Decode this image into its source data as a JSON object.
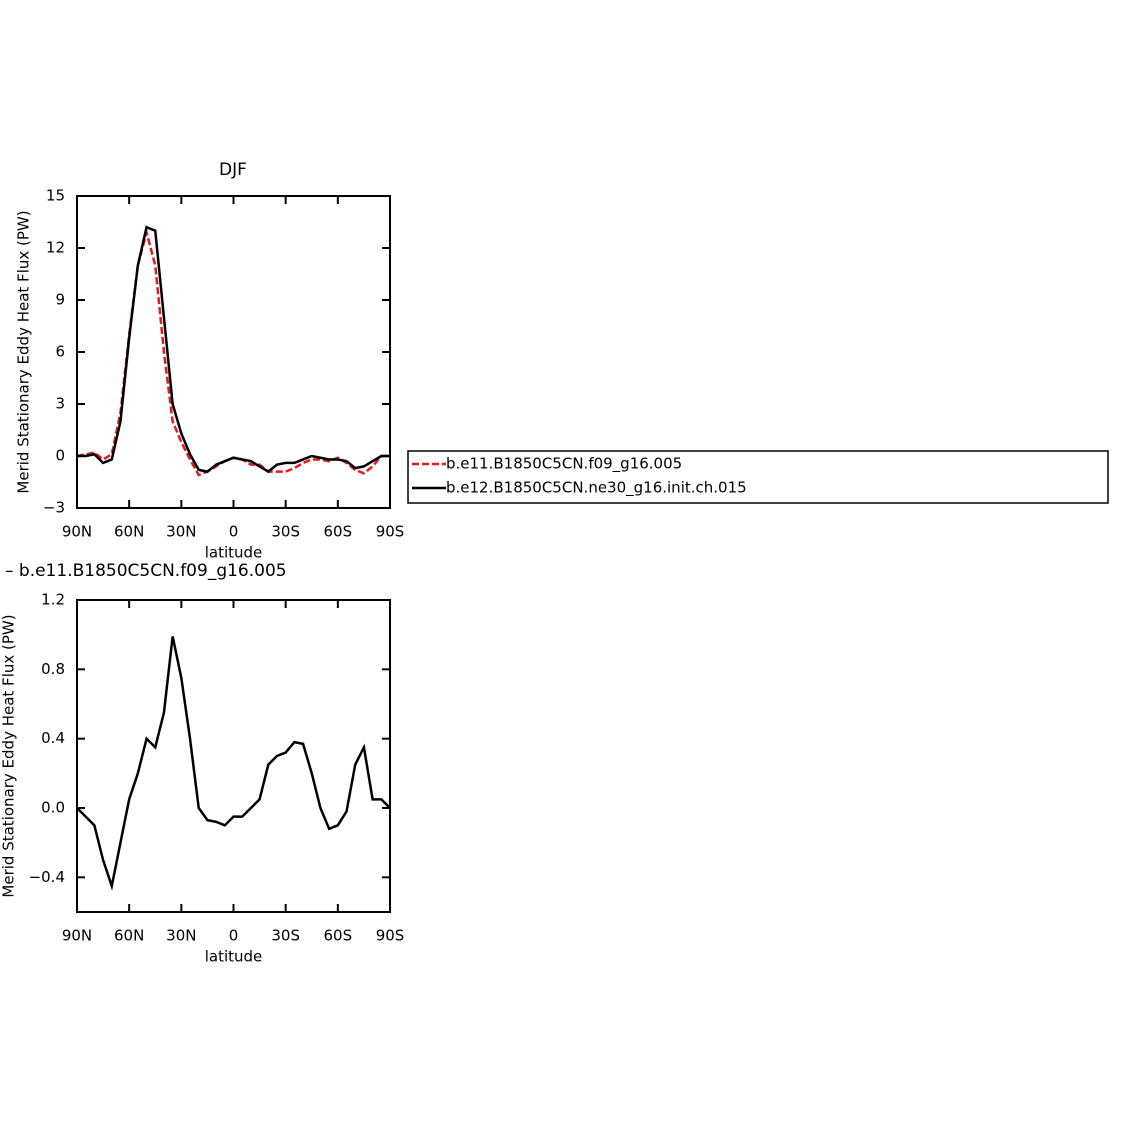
{
  "chart_data": [
    {
      "type": "line",
      "title": "DJF",
      "xlabel": "latitude",
      "ylabel": "Merid Stationary Eddy Heat Flux (PW)",
      "x": [
        90,
        85,
        80,
        75,
        70,
        65,
        60,
        55,
        50,
        45,
        40,
        35,
        30,
        25,
        20,
        15,
        10,
        5,
        0,
        -5,
        -10,
        -15,
        -20,
        -25,
        -30,
        -35,
        -40,
        -45,
        -50,
        -55,
        -60,
        -65,
        -70,
        -75,
        -80,
        -85,
        -90
      ],
      "series": [
        {
          "name": "b.e11.B1850C5CN.f09_g16.005",
          "color": "#e41a1c",
          "dash": true,
          "values": [
            0,
            0.1,
            0.2,
            -0.2,
            0.1,
            2.5,
            7,
            11,
            12.9,
            11,
            6,
            2,
            0.8,
            -0.2,
            -1.1,
            -0.9,
            -0.6,
            -0.3,
            -0.1,
            -0.2,
            -0.5,
            -0.5,
            -0.9,
            -0.9,
            -0.9,
            -0.7,
            -0.4,
            -0.2,
            -0.2,
            -0.3,
            -0.1,
            -0.4,
            -0.8,
            -1.0,
            -0.6,
            0,
            0
          ]
        },
        {
          "name": "b.e12.B1850C5CN.ne30_g16.init.ch.015",
          "color": "#000000",
          "dash": false,
          "values": [
            0,
            0,
            0.1,
            -0.4,
            -0.2,
            2,
            6.8,
            11,
            13.2,
            13,
            8,
            3,
            1.3,
            0.1,
            -0.8,
            -0.9,
            -0.5,
            -0.3,
            -0.1,
            -0.2,
            -0.3,
            -0.6,
            -0.9,
            -0.5,
            -0.4,
            -0.4,
            -0.2,
            0,
            -0.1,
            -0.2,
            -0.2,
            -0.3,
            -0.7,
            -0.6,
            -0.3,
            0,
            0
          ]
        }
      ],
      "xlim": [
        90,
        -90
      ],
      "xticks": [
        {
          "value": 90,
          "label": "90N"
        },
        {
          "value": 60,
          "label": "60N"
        },
        {
          "value": 30,
          "label": "30N"
        },
        0,
        {
          "value": -30,
          "label": "30S"
        },
        {
          "value": -60,
          "label": "60S"
        },
        {
          "value": -90,
          "label": "90S"
        }
      ],
      "ylim": [
        -3,
        15
      ],
      "yticks": [
        {
          "value": -3,
          "label": "−3"
        },
        0,
        3,
        6,
        9,
        12,
        15
      ],
      "legend": "right"
    },
    {
      "type": "line",
      "title": "– b.e11.B1850C5CN.f09_g16.005",
      "xlabel": "latitude",
      "ylabel": "Merid Stationary Eddy Heat Flux (PW)",
      "x": [
        90,
        85,
        80,
        75,
        70,
        65,
        60,
        55,
        50,
        45,
        40,
        35,
        30,
        25,
        20,
        15,
        10,
        5,
        0,
        -5,
        -10,
        -15,
        -20,
        -25,
        -30,
        -35,
        -40,
        -45,
        -50,
        -55,
        -60,
        -65,
        -70,
        -75,
        -80,
        -85,
        -90
      ],
      "series": [
        {
          "color": "#000000",
          "dash": false,
          "values": [
            0,
            -0.05,
            -0.1,
            -0.3,
            -0.45,
            -0.2,
            0.05,
            0.2,
            0.4,
            0.35,
            0.55,
            0.99,
            0.75,
            0.4,
            0.0,
            -0.07,
            -0.08,
            -0.1,
            -0.05,
            -0.05,
            0.0,
            0.05,
            0.25,
            0.3,
            0.32,
            0.38,
            0.37,
            0.2,
            0.0,
            -0.12,
            -0.1,
            -0.02,
            0.25,
            0.35,
            0.05,
            0.05,
            0
          ]
        }
      ],
      "xlim": [
        90,
        -90
      ],
      "xticks": [
        {
          "value": 90,
          "label": "90N"
        },
        {
          "value": 60,
          "label": "60N"
        },
        {
          "value": 30,
          "label": "30N"
        },
        0,
        {
          "value": -30,
          "label": "30S"
        },
        {
          "value": -60,
          "label": "60S"
        },
        {
          "value": -90,
          "label": "90S"
        }
      ],
      "ylim": [
        -0.6,
        1.2
      ],
      "yticks": [
        {
          "value": -0.4,
          "label": "−0.4"
        },
        {
          "value": 0,
          "label": "0.0"
        },
        0.4,
        0.8,
        1.2
      ]
    }
  ]
}
